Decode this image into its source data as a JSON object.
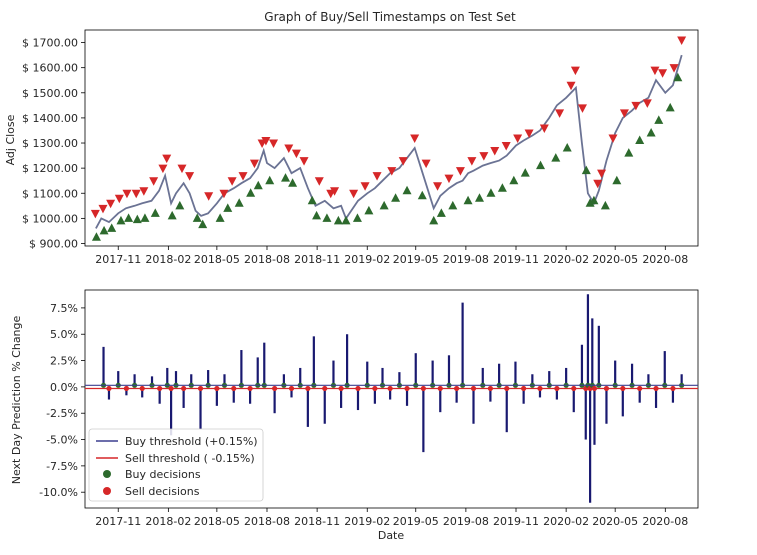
{
  "chart_data": [
    {
      "type": "line",
      "title": "Graph of Buy/Sell Timestamps on Test Set",
      "ylabel": "Adj Close",
      "xlabel": "",
      "ylim": [
        890,
        1750
      ],
      "yticks": [
        900,
        1000,
        1100,
        1200,
        1300,
        1400,
        1500,
        1600,
        1700
      ],
      "ytick_labels": [
        "$ 900.00",
        "$ 1000.00",
        "$ 1100.00",
        "$ 1200.00",
        "$ 1300.00",
        "$ 1400.00",
        "$ 1500.00",
        "$ 1600.00",
        "$ 1700.00"
      ],
      "x_range": [
        "2017-09-01",
        "2020-09-30"
      ],
      "xticks": [
        "2017-11-01",
        "2018-02-01",
        "2018-05-01",
        "2018-08-01",
        "2018-11-01",
        "2019-02-01",
        "2019-05-01",
        "2019-08-01",
        "2019-11-01",
        "2020-02-01",
        "2020-05-01",
        "2020-08-01"
      ],
      "xtick_labels": [
        "2017-11",
        "2018-02",
        "2018-05",
        "2018-08",
        "2018-11",
        "2019-02",
        "2019-05",
        "2019-08",
        "2019-11",
        "2020-02",
        "2020-05",
        "2020-08"
      ],
      "grid": false,
      "colors": {
        "price_line": "#6b7394",
        "buy_marker": "#2d6a2d",
        "sell_marker": "#d62728"
      },
      "series": [
        {
          "marker": "line",
          "x": [
            "2017-09-21",
            "2017-10-01",
            "2017-10-15",
            "2017-11-01",
            "2017-11-15",
            "2017-12-01",
            "2017-12-15",
            "2018-01-01",
            "2018-01-15",
            "2018-01-26",
            "2018-02-06",
            "2018-02-15",
            "2018-03-01",
            "2018-03-12",
            "2018-03-23",
            "2018-04-02",
            "2018-04-15",
            "2018-05-01",
            "2018-05-15",
            "2018-06-01",
            "2018-06-15",
            "2018-07-01",
            "2018-07-15",
            "2018-07-26",
            "2018-08-01",
            "2018-08-15",
            "2018-09-01",
            "2018-09-15",
            "2018-10-01",
            "2018-10-15",
            "2018-10-29",
            "2018-11-15",
            "2018-12-01",
            "2018-12-15",
            "2018-12-24",
            "2019-01-15",
            "2019-02-01",
            "2019-02-15",
            "2019-03-01",
            "2019-03-15",
            "2019-04-01",
            "2019-04-15",
            "2019-04-29",
            "2019-05-15",
            "2019-06-03",
            "2019-06-15",
            "2019-07-01",
            "2019-07-15",
            "2019-07-26",
            "2019-08-05",
            "2019-08-15",
            "2019-09-01",
            "2019-09-15",
            "2019-10-01",
            "2019-10-15",
            "2019-11-01",
            "2019-11-15",
            "2019-12-01",
            "2019-12-15",
            "2020-01-01",
            "2020-01-15",
            "2020-02-01",
            "2020-02-19",
            "2020-03-01",
            "2020-03-12",
            "2020-03-23",
            "2020-04-01",
            "2020-04-15",
            "2020-05-01",
            "2020-05-15",
            "2020-06-01",
            "2020-06-15",
            "2020-07-01",
            "2020-07-15",
            "2020-08-01",
            "2020-08-15",
            "2020-08-31"
          ],
          "values": [
            960,
            1000,
            985,
            1020,
            1040,
            1050,
            1060,
            1070,
            1110,
            1170,
            1060,
            1100,
            1140,
            1100,
            1030,
            1010,
            1020,
            1060,
            1100,
            1120,
            1140,
            1160,
            1200,
            1270,
            1220,
            1200,
            1240,
            1180,
            1200,
            1120,
            1050,
            1070,
            1040,
            1050,
            1000,
            1070,
            1100,
            1120,
            1150,
            1180,
            1200,
            1240,
            1280,
            1170,
            1040,
            1090,
            1120,
            1140,
            1150,
            1180,
            1190,
            1210,
            1220,
            1230,
            1250,
            1290,
            1310,
            1330,
            1350,
            1400,
            1450,
            1480,
            1520,
            1300,
            1100,
            1060,
            1110,
            1230,
            1340,
            1400,
            1430,
            1460,
            1480,
            1550,
            1500,
            1530,
            1650
          ]
        },
        {
          "marker": "triangle-up",
          "x": [
            "2017-09-22",
            "2017-10-06",
            "2017-10-20",
            "2017-11-06",
            "2017-11-20",
            "2017-12-06",
            "2017-12-20",
            "2018-01-08",
            "2018-02-08",
            "2018-02-22",
            "2018-03-26",
            "2018-04-05",
            "2018-05-07",
            "2018-05-21",
            "2018-06-11",
            "2018-07-02",
            "2018-07-16",
            "2018-08-06",
            "2018-09-04",
            "2018-09-17",
            "2018-10-23",
            "2018-10-31",
            "2018-11-19",
            "2018-12-10",
            "2018-12-24",
            "2019-01-14",
            "2019-02-04",
            "2019-03-04",
            "2019-03-25",
            "2019-04-15",
            "2019-05-13",
            "2019-06-03",
            "2019-06-17",
            "2019-07-08",
            "2019-08-05",
            "2019-08-26",
            "2019-09-16",
            "2019-10-07",
            "2019-10-28",
            "2019-11-18",
            "2019-12-16",
            "2020-01-13",
            "2020-02-03",
            "2020-03-09",
            "2020-03-16",
            "2020-03-23",
            "2020-04-13",
            "2020-05-04",
            "2020-05-26",
            "2020-06-15",
            "2020-07-06",
            "2020-07-20",
            "2020-08-10",
            "2020-08-24"
          ],
          "values": [
            925,
            950,
            960,
            990,
            1000,
            995,
            1000,
            1020,
            1010,
            1050,
            1000,
            975,
            1000,
            1040,
            1060,
            1100,
            1130,
            1150,
            1160,
            1140,
            1070,
            1010,
            1000,
            990,
            990,
            1000,
            1030,
            1050,
            1080,
            1110,
            1090,
            990,
            1020,
            1050,
            1070,
            1080,
            1100,
            1120,
            1150,
            1180,
            1210,
            1240,
            1280,
            1190,
            1060,
            1070,
            1050,
            1150,
            1260,
            1310,
            1340,
            1390,
            1440,
            1560
          ]
        },
        {
          "marker": "triangle-down",
          "x": [
            "2017-09-20",
            "2017-10-04",
            "2017-10-18",
            "2017-11-03",
            "2017-11-17",
            "2017-12-04",
            "2017-12-18",
            "2018-01-05",
            "2018-01-22",
            "2018-01-29",
            "2018-02-26",
            "2018-03-12",
            "2018-04-16",
            "2018-05-14",
            "2018-05-29",
            "2018-06-18",
            "2018-07-09",
            "2018-07-23",
            "2018-07-30",
            "2018-08-13",
            "2018-09-10",
            "2018-09-24",
            "2018-10-08",
            "2018-11-05",
            "2018-11-26",
            "2018-12-03",
            "2019-01-07",
            "2019-01-28",
            "2019-02-19",
            "2019-03-18",
            "2019-04-08",
            "2019-04-29",
            "2019-05-20",
            "2019-06-10",
            "2019-07-01",
            "2019-07-22",
            "2019-08-12",
            "2019-09-03",
            "2019-09-23",
            "2019-10-14",
            "2019-11-04",
            "2019-11-25",
            "2019-12-23",
            "2020-01-20",
            "2020-02-10",
            "2020-02-18",
            "2020-03-02",
            "2020-03-30",
            "2020-04-06",
            "2020-04-27",
            "2020-05-18",
            "2020-06-08",
            "2020-06-29",
            "2020-07-13",
            "2020-07-27",
            "2020-08-17",
            "2020-08-31"
          ],
          "values": [
            1020,
            1040,
            1060,
            1080,
            1100,
            1100,
            1110,
            1150,
            1200,
            1240,
            1200,
            1170,
            1090,
            1100,
            1150,
            1170,
            1220,
            1300,
            1310,
            1300,
            1280,
            1260,
            1230,
            1150,
            1100,
            1110,
            1100,
            1130,
            1170,
            1190,
            1230,
            1320,
            1220,
            1130,
            1160,
            1190,
            1230,
            1250,
            1270,
            1290,
            1320,
            1340,
            1360,
            1420,
            1530,
            1590,
            1440,
            1140,
            1180,
            1320,
            1420,
            1450,
            1460,
            1590,
            1580,
            1600,
            1710
          ]
        }
      ]
    },
    {
      "type": "bar",
      "ylabel": "Next Day Prediction % Change",
      "xlabel": "Date",
      "ylim": [
        -11.5,
        9.2
      ],
      "yticks": [
        7.5,
        5.0,
        2.5,
        0.0,
        -2.5,
        -5.0,
        -7.5,
        -10.0
      ],
      "ytick_labels": [
        "7.5%",
        "5.0%",
        "2.5%",
        "0.0%",
        "-2.5%",
        "-5.0%",
        "-7.5%",
        "-10.0%"
      ],
      "x_range": [
        "2017-09-01",
        "2020-09-30"
      ],
      "xticks": [
        "2017-11-01",
        "2018-02-01",
        "2018-05-01",
        "2018-08-01",
        "2018-11-01",
        "2019-02-01",
        "2019-05-01",
        "2019-08-01",
        "2019-11-01",
        "2020-02-01",
        "2020-05-01",
        "2020-08-01"
      ],
      "xtick_labels": [
        "2017-11",
        "2018-02",
        "2018-05",
        "2018-08",
        "2018-11",
        "2019-02",
        "2019-05",
        "2019-08",
        "2019-11",
        "2020-02",
        "2020-05",
        "2020-08"
      ],
      "grid": false,
      "legend_position": "lower-left",
      "colors": {
        "bars": "#191970",
        "buy_threshold": "#3b3f8f",
        "sell_threshold": "#d62728",
        "buy_decisions": "#2d6a2d",
        "sell_decisions": "#d62728"
      },
      "thresholds": [
        {
          "name": "Buy threshold (+0.15%)",
          "value": 0.15
        },
        {
          "name": "Sell threshold ( -0.15%)",
          "value": -0.15
        }
      ],
      "legend": [
        {
          "name": "Buy threshold (+0.15%)",
          "kind": "line",
          "color": "#3b3f8f"
        },
        {
          "name": "Sell threshold ( -0.15%)",
          "kind": "line",
          "color": "#d62728"
        },
        {
          "name": "Buy decisions",
          "kind": "dot",
          "color": "#2d6a2d"
        },
        {
          "name": "Sell decisions",
          "kind": "dot",
          "color": "#d62728"
        }
      ],
      "series": [
        {
          "x": [
            "2017-10-05",
            "2017-10-15",
            "2017-11-01",
            "2017-11-16",
            "2017-12-01",
            "2017-12-15",
            "2018-01-02",
            "2018-01-16",
            "2018-01-30",
            "2018-02-06",
            "2018-02-15",
            "2018-03-01",
            "2018-03-15",
            "2018-04-01",
            "2018-04-15",
            "2018-05-01",
            "2018-05-15",
            "2018-06-01",
            "2018-06-15",
            "2018-07-01",
            "2018-07-15",
            "2018-07-27",
            "2018-08-15",
            "2018-09-01",
            "2018-09-15",
            "2018-10-01",
            "2018-10-15",
            "2018-10-26",
            "2018-11-15",
            "2018-12-01",
            "2018-12-15",
            "2018-12-26",
            "2019-01-15",
            "2019-02-01",
            "2019-02-15",
            "2019-03-01",
            "2019-03-15",
            "2019-04-01",
            "2019-04-15",
            "2019-05-01",
            "2019-05-15",
            "2019-06-01",
            "2019-06-15",
            "2019-07-01",
            "2019-07-15",
            "2019-07-26",
            "2019-08-15",
            "2019-09-01",
            "2019-09-15",
            "2019-10-01",
            "2019-10-15",
            "2019-10-31",
            "2019-11-15",
            "2019-12-01",
            "2019-12-15",
            "2020-01-01",
            "2020-01-15",
            "2020-02-01",
            "2020-02-15",
            "2020-03-01",
            "2020-03-08",
            "2020-03-12",
            "2020-03-16",
            "2020-03-20",
            "2020-03-24",
            "2020-04-01",
            "2020-04-15",
            "2020-05-01",
            "2020-05-15",
            "2020-06-01",
            "2020-06-15",
            "2020-07-01",
            "2020-07-15",
            "2020-07-31",
            "2020-08-15",
            "2020-08-31"
          ],
          "values": [
            3.8,
            -1.2,
            1.5,
            -0.8,
            1.2,
            -1.0,
            1.0,
            -1.6,
            1.8,
            -4.6,
            1.5,
            -2.0,
            1.2,
            -4.0,
            1.6,
            -1.8,
            1.2,
            -1.5,
            3.5,
            -1.6,
            2.8,
            4.2,
            -2.5,
            1.2,
            -1.0,
            1.8,
            -3.8,
            4.8,
            -3.5,
            2.5,
            -2.0,
            5.0,
            -2.2,
            2.4,
            -1.6,
            1.8,
            -1.2,
            1.4,
            -1.8,
            3.2,
            -6.2,
            2.5,
            -2.4,
            3.0,
            -1.5,
            8.0,
            -3.5,
            1.8,
            -1.4,
            2.2,
            -4.3,
            2.4,
            -1.6,
            1.2,
            -1.0,
            1.5,
            -1.2,
            1.8,
            -2.4,
            4.0,
            -5.0,
            8.8,
            -11.0,
            6.5,
            -5.5,
            5.8,
            -3.5,
            2.5,
            -2.8,
            2.2,
            -1.5,
            1.2,
            -2.0,
            3.4,
            -1.5,
            1.2
          ]
        }
      ]
    }
  ]
}
